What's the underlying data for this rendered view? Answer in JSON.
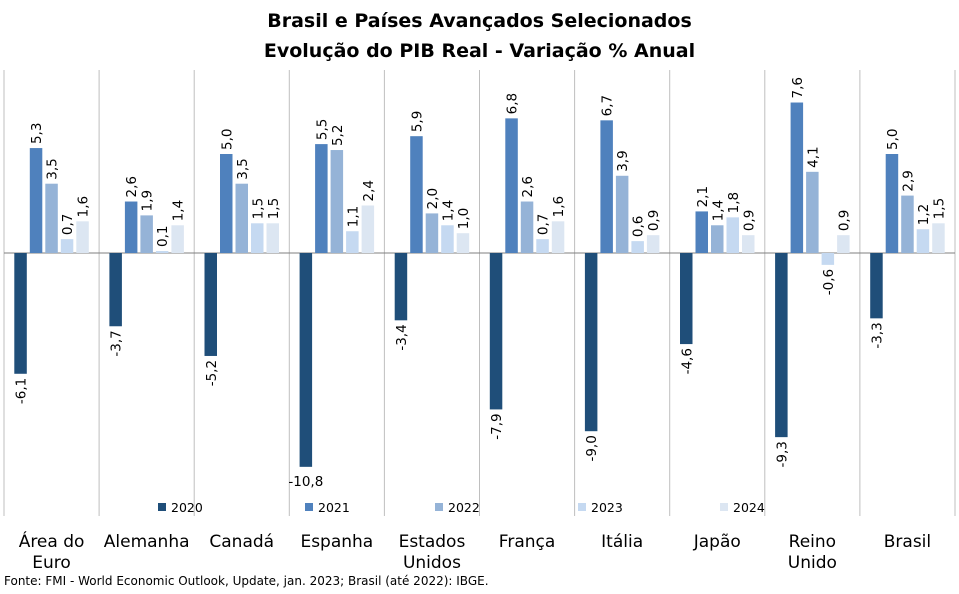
{
  "chart_data": {
    "type": "bar",
    "title": "Brasil e Países Avançados Selecionados",
    "subtitle": "Evolução do PIB Real - Variação % Anual",
    "categories": [
      [
        "Área do",
        "Euro"
      ],
      [
        "Alemanha"
      ],
      [
        "Canadá"
      ],
      [
        "Espanha"
      ],
      [
        "Estados",
        "Unidos"
      ],
      [
        "França"
      ],
      [
        "Itália"
      ],
      [
        "Japão"
      ],
      [
        "Reino",
        "Unido"
      ],
      [
        "Brasil"
      ]
    ],
    "series": [
      {
        "name": "2020",
        "color": "#1f4e79",
        "values": [
          -6.1,
          -3.7,
          -5.2,
          -10.8,
          -3.4,
          -7.9,
          -9.0,
          -4.6,
          -9.3,
          -3.3
        ]
      },
      {
        "name": "2021",
        "color": "#4f81bd",
        "values": [
          5.3,
          2.6,
          5.0,
          5.5,
          5.9,
          6.8,
          6.7,
          2.1,
          7.6,
          5.0
        ]
      },
      {
        "name": "2022",
        "color": "#95b3d7",
        "values": [
          3.5,
          1.9,
          3.5,
          5.2,
          2.0,
          2.6,
          3.9,
          1.4,
          4.1,
          2.9
        ]
      },
      {
        "name": "2023",
        "color": "#c5d9f1",
        "values": [
          0.7,
          0.1,
          1.5,
          1.1,
          1.4,
          0.7,
          0.6,
          1.8,
          -0.6,
          1.2
        ]
      },
      {
        "name": "2024",
        "color": "#dce6f2",
        "values": [
          1.6,
          1.4,
          1.5,
          2.4,
          1.0,
          1.6,
          0.9,
          0.9,
          0.9,
          1.5
        ]
      }
    ],
    "ylim": [
      -12,
      9
    ],
    "grid": false,
    "legend": "bottom-inside",
    "value_labels": "rotated"
  },
  "footer": "Fonte: FMI - World Economic Outlook, Update, jan. 2023; Brasil (até 2022): IBGE."
}
